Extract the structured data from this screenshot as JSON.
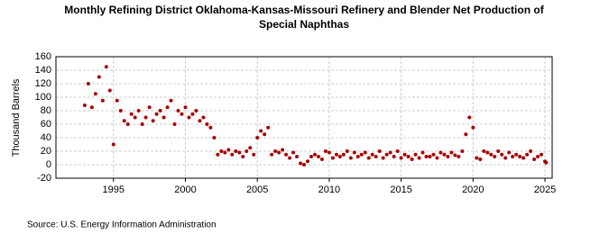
{
  "chart_data": {
    "type": "scatter",
    "title": "Monthly Refining District Oklahoma-Kansas-Missouri Refinery and Blender Net Production of",
    "subtitle": "Special Naphthas",
    "y_label": "Thousand Barrels",
    "source": "Source: U.S. Energy Information Administration",
    "color": "#aa0000",
    "grid": true,
    "xlim": [
      1991,
      2025.5
    ],
    "ylim": [
      -20,
      160
    ],
    "xticks": [
      1995,
      2000,
      2005,
      2010,
      2015,
      2020,
      2025
    ],
    "yticks": [
      -20,
      0,
      20,
      40,
      60,
      80,
      100,
      120,
      140,
      160
    ],
    "x": [
      1993,
      1993.25,
      1993.5,
      1993.75,
      1994,
      1994.25,
      1994.5,
      1994.75,
      1995,
      1995.25,
      1995.5,
      1995.75,
      1996,
      1996.25,
      1996.5,
      1996.75,
      1997,
      1997.25,
      1997.5,
      1997.75,
      1998,
      1998.25,
      1998.5,
      1998.75,
      1999,
      1999.25,
      1999.5,
      1999.75,
      2000,
      2000.25,
      2000.5,
      2000.75,
      2001,
      2001.25,
      2001.5,
      2001.75,
      2002,
      2002.25,
      2002.5,
      2002.75,
      2003,
      2003.25,
      2003.5,
      2003.75,
      2004,
      2004.25,
      2004.5,
      2004.75,
      2005,
      2005.25,
      2005.5,
      2005.75,
      2006,
      2006.25,
      2006.5,
      2006.75,
      2007,
      2007.25,
      2007.5,
      2007.75,
      2008,
      2008.25,
      2008.5,
      2008.75,
      2009,
      2009.25,
      2009.5,
      2009.75,
      2010,
      2010.25,
      2010.5,
      2010.75,
      2011,
      2011.25,
      2011.5,
      2011.75,
      2012,
      2012.25,
      2012.5,
      2012.75,
      2013,
      2013.25,
      2013.5,
      2013.75,
      2014,
      2014.25,
      2014.5,
      2014.75,
      2015,
      2015.25,
      2015.5,
      2015.75,
      2016,
      2016.25,
      2016.5,
      2016.75,
      2017,
      2017.25,
      2017.5,
      2017.75,
      2018,
      2018.25,
      2018.5,
      2018.75,
      2019,
      2019.25,
      2019.5,
      2019.75,
      2020,
      2020.25,
      2020.5,
      2020.75,
      2021,
      2021.25,
      2021.5,
      2021.75,
      2022,
      2022.25,
      2022.5,
      2022.75,
      2023,
      2023.25,
      2023.5,
      2023.75,
      2024,
      2024.25,
      2024.5,
      2024.75,
      2025,
      2025.08
    ],
    "values": [
      88,
      120,
      85,
      105,
      130,
      95,
      145,
      110,
      30,
      95,
      80,
      65,
      60,
      75,
      70,
      80,
      60,
      70,
      85,
      65,
      75,
      80,
      70,
      85,
      95,
      60,
      80,
      75,
      85,
      70,
      75,
      80,
      65,
      70,
      60,
      55,
      40,
      15,
      20,
      18,
      22,
      15,
      20,
      18,
      12,
      20,
      25,
      15,
      40,
      50,
      45,
      55,
      15,
      20,
      18,
      22,
      15,
      10,
      18,
      12,
      2,
      0,
      5,
      12,
      15,
      12,
      8,
      20,
      18,
      10,
      15,
      12,
      15,
      20,
      10,
      18,
      12,
      15,
      18,
      10,
      15,
      12,
      20,
      10,
      15,
      18,
      12,
      20,
      10,
      15,
      12,
      8,
      15,
      10,
      18,
      12,
      12,
      15,
      10,
      18,
      15,
      12,
      18,
      14,
      12,
      20,
      45,
      70,
      55,
      10,
      8,
      20,
      18,
      15,
      12,
      20,
      15,
      10,
      18,
      12,
      15,
      12,
      10,
      15,
      20,
      8,
      12,
      15,
      5,
      3
    ]
  }
}
